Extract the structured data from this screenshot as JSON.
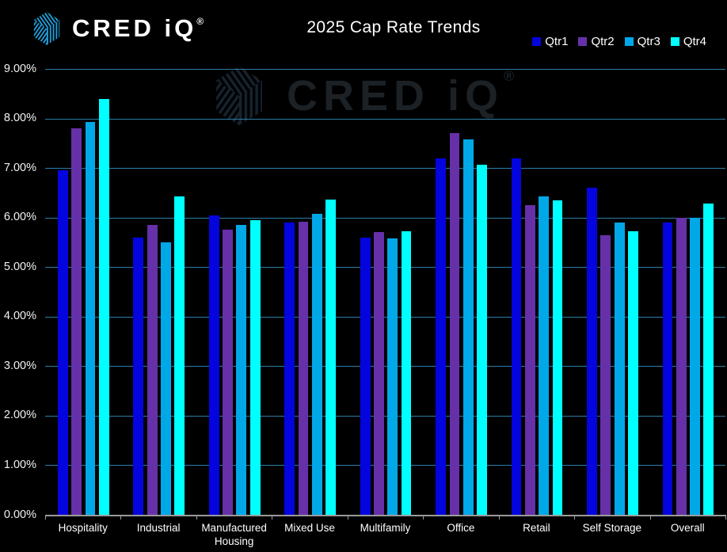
{
  "header": {
    "logo": {
      "brand": "CRED iQ",
      "registered": "®"
    },
    "title": "2025 Cap Rate Trends"
  },
  "watermark": {
    "brand": "CRED iQ",
    "registered": "®"
  },
  "colors": {
    "background": "#000000",
    "gridline": "#2D7EA8",
    "axis": "#9A9A9A",
    "text": "#FFFFFF",
    "logo_blue": "#1E9CD8",
    "watermark_dark": "#16232E"
  },
  "chart_data": {
    "type": "bar",
    "title": "2025 Cap Rate Trends",
    "categories": [
      "Hospitality",
      "Industrial",
      "Manufactured Housing",
      "Mixed Use",
      "Multifamily",
      "Office",
      "Retail",
      "Self Storage",
      "Overall"
    ],
    "series": [
      {
        "name": "Qtr1",
        "color": "#0404DE",
        "values": [
          6.95,
          5.6,
          6.05,
          5.9,
          5.6,
          7.2,
          7.2,
          6.6,
          5.9
        ]
      },
      {
        "name": "Qtr2",
        "color": "#6630A8",
        "values": [
          7.8,
          5.85,
          5.75,
          5.92,
          5.7,
          7.7,
          6.25,
          5.65,
          6.0
        ]
      },
      {
        "name": "Qtr3",
        "color": "#00A8E8",
        "values": [
          7.93,
          5.5,
          5.85,
          6.07,
          5.58,
          7.58,
          6.42,
          5.9,
          6.0
        ]
      },
      {
        "name": "Qtr4",
        "color": "#00FFFF",
        "values": [
          8.4,
          6.43,
          5.94,
          6.37,
          5.72,
          7.07,
          6.35,
          5.73,
          6.28
        ]
      }
    ],
    "xlabel": "",
    "ylabel": "",
    "ylim": [
      0,
      9
    ],
    "y_tick_step": 1,
    "y_tick_labels": [
      "0.00%",
      "1.00%",
      "2.00%",
      "3.00%",
      "4.00%",
      "5.00%",
      "6.00%",
      "7.00%",
      "8.00%",
      "9.00%"
    ],
    "grid": true,
    "legend_position": "top-right"
  }
}
